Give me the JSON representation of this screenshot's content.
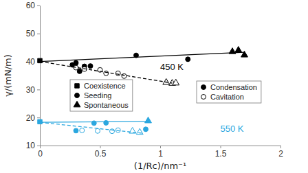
{
  "chart_data": {
    "type": "scatter",
    "x_label": "(1/Rc)/nm⁻¹",
    "y_label": "γ/(mN/m)",
    "xlim": [
      0,
      2
    ],
    "xticks": [
      0,
      0.5,
      1,
      1.5,
      2
    ],
    "ylim": [
      10,
      60
    ],
    "yticks": [
      10,
      20,
      30,
      40,
      50,
      60
    ],
    "grid": false,
    "series": [
      {
        "type": "scatter",
        "marker": "square",
        "color": "#000000",
        "x": [
          0
        ],
        "values": [
          40.3
        ]
      },
      {
        "type": "scatter",
        "marker": "circle",
        "color": "#000000",
        "x": [
          0.27,
          0.3,
          0.33,
          0.37,
          0.42,
          0.8,
          1.23
        ],
        "values": [
          38.8,
          39.5,
          36.5,
          38.3,
          38.4,
          42.2,
          40.8
        ]
      },
      {
        "type": "scatter",
        "marker": "circle-open",
        "color": "#000000",
        "x": [
          0.3,
          0.37,
          0.5,
          0.55,
          0.65,
          0.7
        ],
        "values": [
          37.8,
          37.3,
          37,
          35.8,
          35.8,
          34.8
        ]
      },
      {
        "type": "scatter",
        "marker": "triangle",
        "color": "#000000",
        "x": [
          1.6,
          1.65,
          1.7
        ],
        "values": [
          43.5,
          44,
          42.3
        ]
      },
      {
        "type": "scatter",
        "marker": "triangle-open",
        "color": "#000000",
        "x": [
          1.05,
          1.1,
          1.13
        ],
        "values": [
          32.5,
          32.2,
          32.3
        ]
      },
      {
        "type": "line",
        "line_style": "solid",
        "color": "#000000",
        "x": [
          0,
          1.7
        ],
        "values": [
          40,
          43.3
        ]
      },
      {
        "type": "line",
        "line_style": "dashed",
        "color": "#000000",
        "x": [
          0,
          1.1
        ],
        "values": [
          40,
          32.3
        ]
      },
      {
        "type": "scatter",
        "marker": "square",
        "color": "#2aa7df",
        "x": [
          0
        ],
        "values": [
          18.5
        ]
      },
      {
        "type": "scatter",
        "marker": "circle",
        "color": "#2aa7df",
        "x": [
          0.3,
          0.45,
          0.55,
          0.88
        ],
        "values": [
          15.3,
          18,
          18.1,
          15.8
        ]
      },
      {
        "type": "scatter",
        "marker": "circle-open",
        "color": "#2aa7df",
        "x": [
          0.35,
          0.48,
          0.6,
          0.65
        ],
        "values": [
          15.4,
          15.2,
          15.1,
          15.5
        ]
      },
      {
        "type": "scatter",
        "marker": "triangle",
        "color": "#2aa7df",
        "x": [
          0.9
        ],
        "values": [
          18.8
        ]
      },
      {
        "type": "scatter",
        "marker": "triangle-open",
        "color": "#2aa7df",
        "x": [
          0.77,
          0.83
        ],
        "values": [
          15.1,
          14.7
        ]
      },
      {
        "type": "line",
        "line_style": "solid",
        "color": "#2aa7df",
        "x": [
          0,
          0.9
        ],
        "values": [
          18.3,
          18.6
        ]
      },
      {
        "type": "line",
        "line_style": "dashed",
        "color": "#2aa7df",
        "x": [
          0,
          0.85
        ],
        "values": [
          18.3,
          14.4
        ]
      }
    ],
    "annotations": [
      {
        "text": "450 K",
        "x": 1.0,
        "y": 37,
        "color": "#000000"
      },
      {
        "text": "550 K",
        "x": 1.5,
        "y": 15,
        "color": "#2aa7df"
      }
    ],
    "legend_groups": [
      [
        {
          "label": "Coexistence",
          "marker": "square",
          "color": "#000000"
        },
        {
          "label": "Seeding",
          "marker": "circle",
          "color": "#000000"
        },
        {
          "label": "Spontaneous",
          "marker": "triangle",
          "color": "#000000"
        }
      ],
      [
        {
          "label": "Condensation",
          "marker": "circle",
          "color": "#000000"
        },
        {
          "label": "Cavitation",
          "marker": "circle-open",
          "color": "#000000"
        }
      ]
    ]
  }
}
